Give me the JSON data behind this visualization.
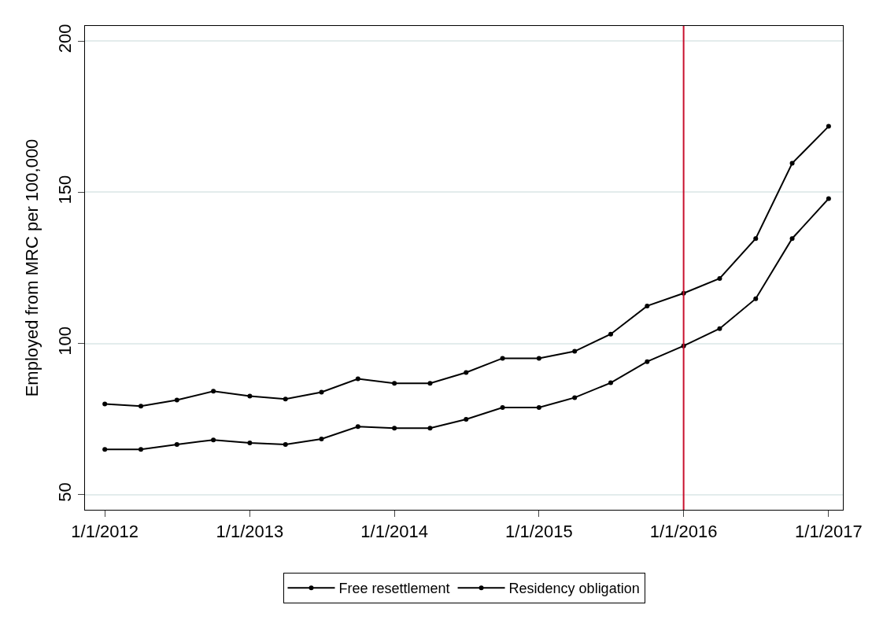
{
  "chart_data": {
    "type": "line",
    "ylabel": "Employed from MRC per 100,000",
    "x": [
      "2012-01-01",
      "2012-04-01",
      "2012-07-01",
      "2012-10-01",
      "2013-01-01",
      "2013-04-01",
      "2013-07-01",
      "2013-10-01",
      "2014-01-01",
      "2014-04-01",
      "2014-07-01",
      "2014-10-01",
      "2015-01-01",
      "2015-04-01",
      "2015-07-01",
      "2015-10-01",
      "2016-01-01",
      "2016-04-01",
      "2016-07-01",
      "2016-10-01",
      "2017-01-01"
    ],
    "series": [
      {
        "name": "Free resettlement",
        "color": "#000000",
        "values": [
          80,
          79.3,
          81.3,
          84.2,
          82.6,
          81.6,
          83.9,
          88.3,
          86.8,
          86.8,
          90.4,
          95.1,
          95.1,
          97.4,
          103.1,
          112.4,
          116.6,
          121.5,
          134.7,
          159.6,
          171.8
        ]
      },
      {
        "name": "Residency obligation",
        "color": "#000000",
        "values": [
          65,
          65,
          66.6,
          68.1,
          67.1,
          66.6,
          68.4,
          72.5,
          72,
          72,
          74.9,
          78.8,
          78.8,
          82.1,
          87,
          94,
          99.2,
          104.9,
          114.8,
          134.7,
          147.9
        ]
      }
    ],
    "xlim": [
      "2011-11-12",
      "2017-02-06"
    ],
    "xticks": [
      {
        "value": "2012-01-01",
        "label": "1/1/2012"
      },
      {
        "value": "2013-01-01",
        "label": "1/1/2013"
      },
      {
        "value": "2014-01-01",
        "label": "1/1/2014"
      },
      {
        "value": "2015-01-01",
        "label": "1/1/2015"
      },
      {
        "value": "2016-01-01",
        "label": "1/1/2016"
      },
      {
        "value": "2017-01-01",
        "label": "1/1/2017"
      }
    ],
    "ylim": [
      45,
      205
    ],
    "yticks": [
      50,
      100,
      150,
      200
    ],
    "ref_lines": [
      {
        "axis": "x",
        "value": "2016-01-01",
        "color": "#c8102e"
      }
    ],
    "grid": "y",
    "legend": "bottom",
    "marker": "circle",
    "line_style": "solid"
  }
}
